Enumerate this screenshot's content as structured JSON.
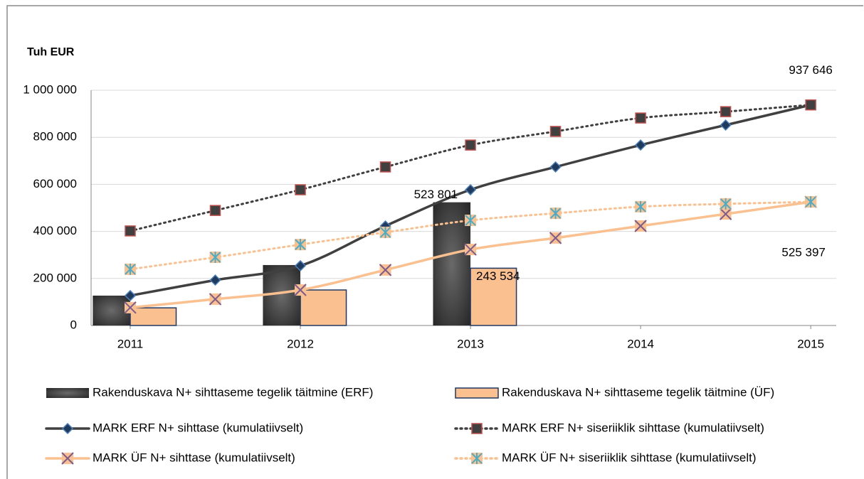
{
  "chart_data": {
    "type": "combo",
    "y_label": "Tuh EUR",
    "xlim": [
      2010.77,
      2015.15
    ],
    "xticks": [
      2011,
      2012,
      2013,
      2014,
      2015
    ],
    "ylim": [
      0,
      1000000
    ],
    "yticks": [
      0,
      {
        "value": 200000,
        "label": "200 000"
      },
      {
        "value": 400000,
        "label": "400 000"
      },
      {
        "value": 600000,
        "label": "600 000"
      },
      {
        "value": 800000,
        "label": "800 000"
      },
      {
        "value": 1000000,
        "label": "1 000 000"
      }
    ],
    "grid": true,
    "legend": "bottom",
    "series": [
      {
        "name": "Rakenduskava N+ sihttaseme tegelik täitmine (ERF)",
        "kind": "bar",
        "color": "#404040",
        "x": [
          2011,
          2012,
          2013
        ],
        "values": [
          127000,
          257000,
          523801
        ],
        "value_labels": [
          null,
          null,
          "523 801"
        ]
      },
      {
        "name": "Rakenduskava N+ sihttaseme tegelik täitmine (ÜF)",
        "kind": "bar",
        "color": "#fac090",
        "x": [
          2011,
          2012,
          2013
        ],
        "values": [
          75000,
          151000,
          243534
        ],
        "value_labels": [
          null,
          null,
          "243 534"
        ]
      },
      {
        "name": "MARK ERF N+ sihttase (kumulatiivselt)",
        "kind": "line",
        "color": "#404040",
        "marker": "diamond",
        "dotted": false,
        "x": [
          2011,
          2011.5,
          2012,
          2012.5,
          2013,
          2013.5,
          2014,
          2014.5,
          2015
        ],
        "values": [
          127000,
          193000,
          254000,
          423000,
          577000,
          674000,
          767000,
          852000,
          937646
        ],
        "value_labels": [
          null,
          null,
          null,
          null,
          null,
          null,
          null,
          null,
          "937 646"
        ]
      },
      {
        "name": "MARK ERF N+ siseriiklik sihttase (kumulatiivselt)",
        "kind": "line",
        "color": "#404040",
        "marker": "square",
        "dotted": true,
        "x": [
          2011,
          2011.5,
          2012,
          2012.5,
          2013,
          2013.5,
          2014,
          2014.5,
          2015
        ],
        "values": [
          402000,
          489000,
          577000,
          674000,
          767000,
          825000,
          882000,
          909000,
          937646
        ]
      },
      {
        "name": "MARK ÜF N+ sihttase (kumulatiivselt)",
        "kind": "line",
        "color": "#fac090",
        "marker": "x",
        "dotted": false,
        "x": [
          2011,
          2011.5,
          2012,
          2012.5,
          2013,
          2013.5,
          2014,
          2014.5,
          2015
        ],
        "values": [
          76000,
          112000,
          151000,
          236000,
          323000,
          372000,
          423000,
          474000,
          525397
        ],
        "value_labels": [
          null,
          null,
          null,
          null,
          null,
          null,
          null,
          null,
          "525 397"
        ]
      },
      {
        "name": "MARK ÜF N+ siseriiklik sihttase (kumulatiivselt)",
        "kind": "line",
        "color": "#fac090",
        "marker": "star",
        "dotted": true,
        "x": [
          2011,
          2011.5,
          2012,
          2012.5,
          2013,
          2013.5,
          2014,
          2014.5,
          2015
        ],
        "values": [
          239000,
          290000,
          344000,
          396000,
          447000,
          477000,
          505000,
          517000,
          525397
        ]
      }
    ]
  }
}
